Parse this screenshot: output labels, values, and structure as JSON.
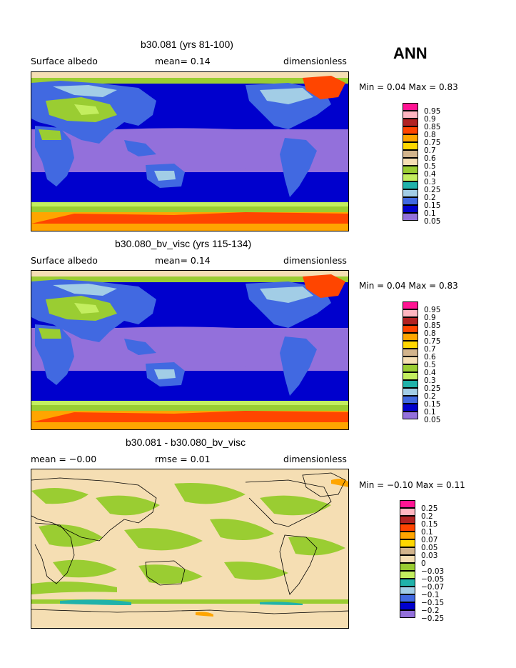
{
  "season": "ANN",
  "colors": {
    "p05": "#9370db",
    "p1": "#0000cd",
    "p15": "#4169e1",
    "p2": "#a2cde6",
    "p25": "#20b2aa",
    "p3": "#c3ee5f",
    "p4": "#9acd32",
    "p5": "#f5deb3",
    "p6": "#d2b48c",
    "p7": "#ffd700",
    "p75": "#ffa500",
    "p8": "#ff4500",
    "p85": "#b22222",
    "p9": "#ffb6c1",
    "p95": "#ff1493"
  },
  "panels": [
    {
      "title": "b30.081 (yrs 81-100)",
      "left": "Surface albedo",
      "mean": "mean=   0.14",
      "right": "dimensionless",
      "minmax": "Min =   0.04  Max =    0.83",
      "legend": [
        "0.95",
        "0.9",
        "0.85",
        "0.8",
        "0.75",
        "0.7",
        "0.6",
        "0.5",
        "0.4",
        "0.3",
        "0.25",
        "0.2",
        "0.15",
        "0.1",
        "0.05"
      ]
    },
    {
      "title": "b30.080_bv_visc (yrs 115-134)",
      "left": "Surface albedo",
      "mean": "mean=   0.14",
      "right": "dimensionless",
      "minmax": "Min =   0.04  Max =    0.83",
      "legend": [
        "0.95",
        "0.9",
        "0.85",
        "0.8",
        "0.75",
        "0.7",
        "0.6",
        "0.5",
        "0.4",
        "0.3",
        "0.25",
        "0.2",
        "0.15",
        "0.1",
        "0.05"
      ]
    },
    {
      "title": "b30.081 - b30.080_bv_visc",
      "left": "mean =  −0.00",
      "mean": "rmse =   0.01",
      "right": "dimensionless",
      "minmax": "Min =  −0.10  Max =    0.11",
      "legend": [
        "0.25",
        "0.2",
        "0.15",
        "0.1",
        "0.07",
        "0.05",
        "0.03",
        "0",
        "−0.03",
        "−0.05",
        "−0.07",
        "−0.1",
        "−0.15",
        "−0.2",
        "−0.25"
      ]
    }
  ]
}
